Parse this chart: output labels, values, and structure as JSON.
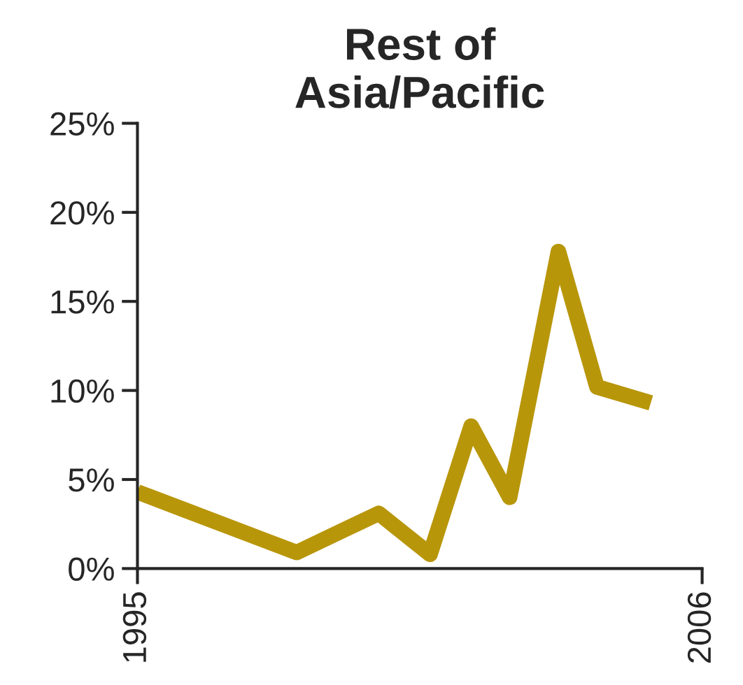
{
  "chart_data": {
    "type": "line",
    "title": "Rest of\nAsia/Pacific",
    "x": [
      1995,
      1998.1,
      1999.7,
      2000.7,
      2001.5,
      2002.25,
      2003.2,
      2003.95,
      2005
    ],
    "series": [
      {
        "color": "#b8960a",
        "values": [
          4.3,
          0.9,
          3.1,
          0.8,
          8.0,
          4.0,
          17.8,
          10.2,
          9.3
        ]
      }
    ],
    "xlim": [
      1995,
      2006
    ],
    "xticks": [
      1995,
      2006
    ],
    "ylim": [
      0,
      25
    ],
    "yticks": [
      {
        "value": 0,
        "label": "0%"
      },
      {
        "value": 5,
        "label": "5%"
      },
      {
        "value": 10,
        "label": "10%"
      },
      {
        "value": 15,
        "label": "15%"
      },
      {
        "value": 20,
        "label": "20%"
      },
      {
        "value": 25,
        "label": "25%"
      }
    ],
    "grid": false,
    "legend": false,
    "marker": "none",
    "line_style": "solid"
  }
}
